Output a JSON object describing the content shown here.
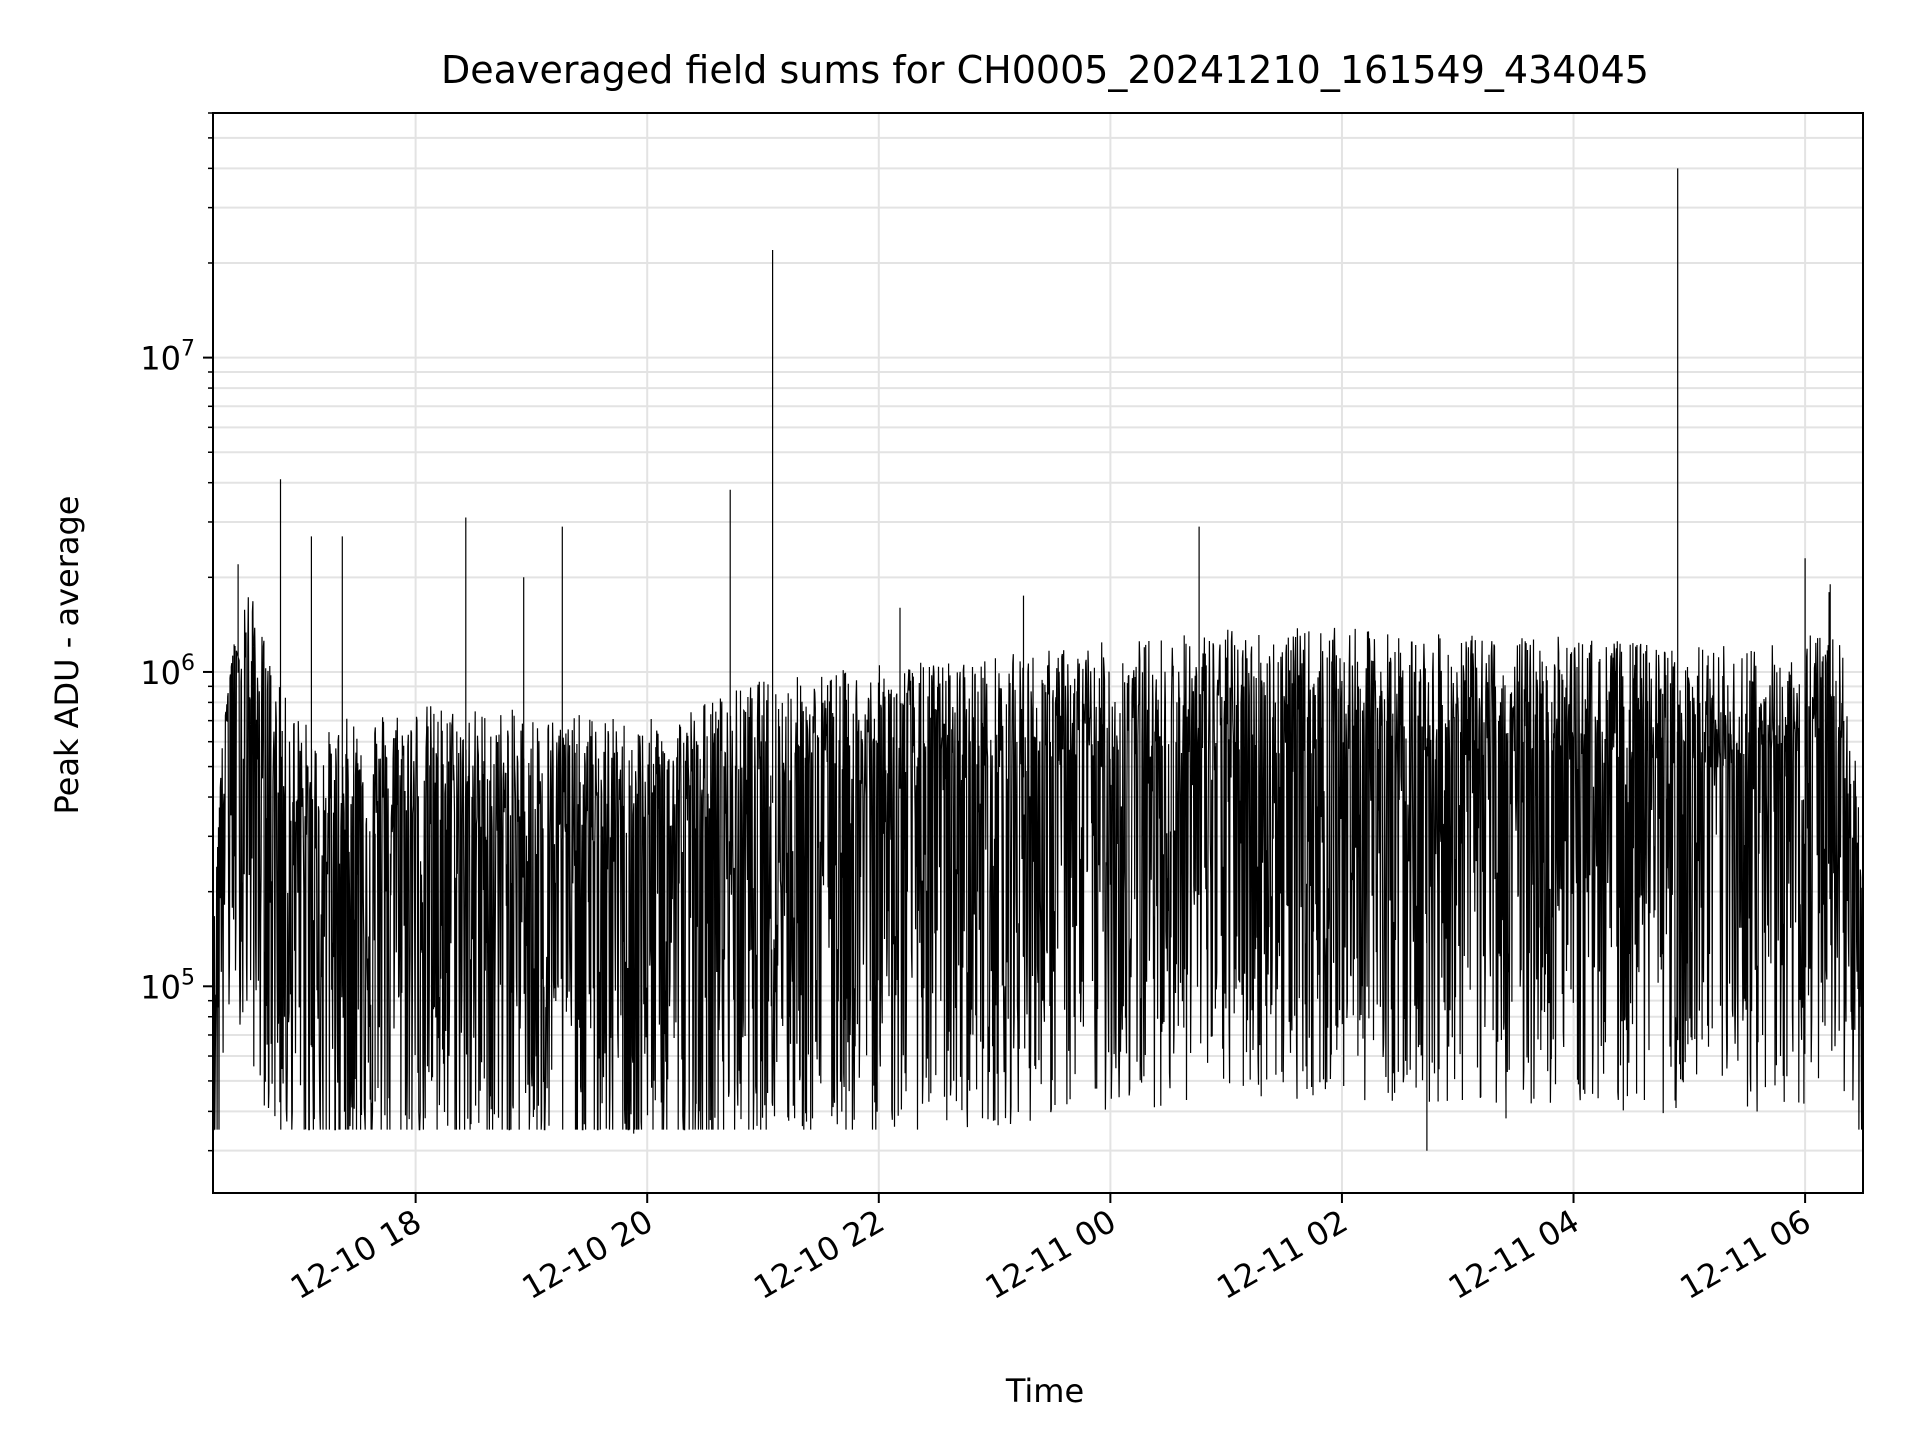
{
  "chart_data": {
    "type": "line",
    "title": "Deaveraged field sums for CH0005_20241210_161549_434045",
    "xlabel": "Time",
    "ylabel": "Peak ADU - average",
    "yscale": "log",
    "xlim": [
      "2024-12-10 16:15",
      "2024-12-11 06:30"
    ],
    "ylim": [
      22000,
      60000000
    ],
    "grid": true,
    "line_color": "#000000",
    "x_ticks": [
      {
        "value": "2024-12-10 18:00",
        "label": "12-10 18"
      },
      {
        "value": "2024-12-10 20:00",
        "label": "12-10 20"
      },
      {
        "value": "2024-12-10 22:00",
        "label": "12-10 22"
      },
      {
        "value": "2024-12-11 00:00",
        "label": "12-11 00"
      },
      {
        "value": "2024-12-11 02:00",
        "label": "12-11 02"
      },
      {
        "value": "2024-12-11 04:00",
        "label": "12-11 04"
      },
      {
        "value": "2024-12-11 06:00",
        "label": "12-11 06"
      }
    ],
    "y_ticks": [
      {
        "value": 100000,
        "base": "10",
        "exp": "5"
      },
      {
        "value": 1000000,
        "base": "10",
        "exp": "6"
      },
      {
        "value": 10000000,
        "base": "10",
        "exp": "7"
      }
    ],
    "series": [
      {
        "points": [
          [
            "2024-12-10 16:15",
            120000
          ],
          [
            "2024-12-10 16:20",
            550000
          ],
          [
            "2024-12-10 16:26",
            1100000
          ],
          [
            "2024-12-10 16:35",
            700000
          ],
          [
            "2024-12-10 16:50",
            350000
          ],
          [
            "2024-12-10 17:10",
            250000
          ],
          [
            "2024-12-10 17:30",
            300000
          ],
          [
            "2024-12-10 18:00",
            320000
          ],
          [
            "2024-12-10 19:00",
            300000
          ],
          [
            "2024-12-10 20:00",
            280000
          ],
          [
            "2024-12-10 21:00",
            380000
          ],
          [
            "2024-12-10 22:00",
            420000
          ],
          [
            "2024-12-10 23:00",
            450000
          ],
          [
            "2024-12-11 00:00",
            500000
          ],
          [
            "2024-12-11 01:00",
            550000
          ],
          [
            "2024-12-11 02:00",
            550000
          ],
          [
            "2024-12-11 03:00",
            520000
          ],
          [
            "2024-12-11 04:00",
            520000
          ],
          [
            "2024-12-11 05:00",
            480000
          ],
          [
            "2024-12-11 06:00",
            500000
          ],
          [
            "2024-12-11 06:15",
            800000
          ],
          [
            "2024-12-11 06:30",
            130000
          ]
        ]
      }
    ],
    "spikes": [
      [
        "2024-12-10 16:28",
        2200000
      ],
      [
        "2024-12-10 16:50",
        4100000
      ],
      [
        "2024-12-10 17:06",
        2700000
      ],
      [
        "2024-12-10 17:22",
        2700000
      ],
      [
        "2024-12-10 18:26",
        3100000
      ],
      [
        "2024-12-10 18:56",
        2000000
      ],
      [
        "2024-12-10 19:16",
        2900000
      ],
      [
        "2024-12-10 20:43",
        3800000
      ],
      [
        "2024-12-10 21:05",
        22000000
      ],
      [
        "2024-12-10 22:11",
        1600000
      ],
      [
        "2024-12-10 23:15",
        1750000
      ],
      [
        "2024-12-11 00:46",
        2900000
      ],
      [
        "2024-12-11 04:54",
        40000000
      ],
      [
        "2024-12-11 06:00",
        2300000
      ],
      [
        "2024-12-11 06:13",
        1900000
      ]
    ],
    "dips": [
      [
        "2024-12-10 17:39",
        43000
      ],
      [
        "2024-12-10 19:53",
        34000
      ],
      [
        "2024-12-10 20:25",
        40000
      ],
      [
        "2024-12-11 02:44",
        30000
      ],
      [
        "2024-12-11 03:25",
        38000
      ],
      [
        "2024-12-11 01:45",
        45000
      ]
    ]
  }
}
